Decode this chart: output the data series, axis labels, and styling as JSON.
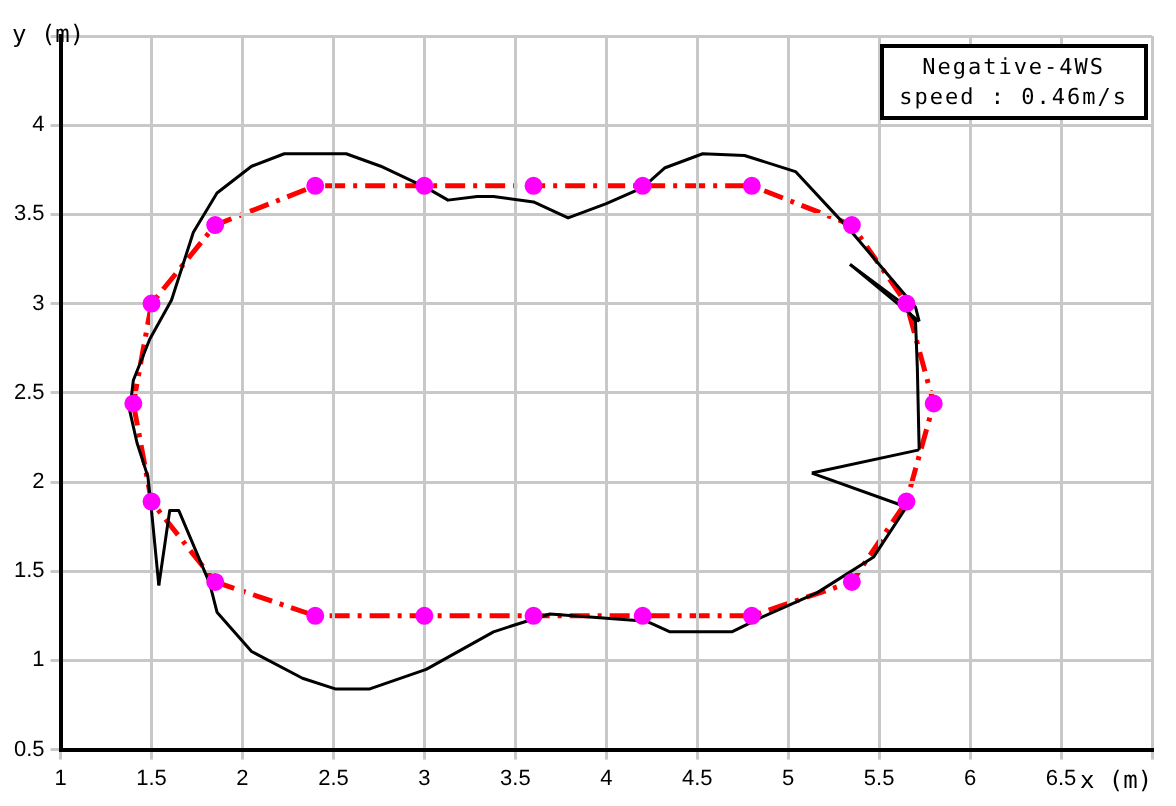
{
  "chart_data": {
    "type": "line",
    "xlabel": "x (m)",
    "ylabel": "y (m)",
    "annotations": [
      "Negative-4WS",
      "speed : 0.46m/s"
    ],
    "xlim": [
      1,
      7
    ],
    "xticks": [
      1,
      1.5,
      2,
      2.5,
      3,
      3.5,
      4,
      4.5,
      5,
      5.5,
      6,
      6.5,
      {
        "value": 7,
        "label": null
      }
    ],
    "ylim": [
      0.5,
      4.5
    ],
    "yticks": [
      0.5,
      1,
      1.5,
      2,
      2.5,
      3,
      3.5,
      4,
      {
        "value": 4.5,
        "label": null
      }
    ],
    "grid": true,
    "legend": false,
    "series": [
      {
        "type": "line",
        "color": "#000000",
        "line_style": "solid",
        "marker": "none",
        "x": [
          1.38,
          1.4,
          1.49,
          1.61,
          1.73,
          1.86,
          2.05,
          2.23,
          2.57,
          2.76,
          3.01,
          3.13,
          3.29,
          3.38,
          3.6,
          3.79,
          4.0,
          4.2,
          4.32,
          4.53,
          4.76,
          5.04,
          5.25,
          5.35,
          5.7,
          5.72
        ],
        "values": [
          2.4,
          2.57,
          2.8,
          3.02,
          3.4,
          3.62,
          3.77,
          3.84,
          3.84,
          3.77,
          3.65,
          3.58,
          3.6,
          3.6,
          3.57,
          3.48,
          3.56,
          3.65,
          3.76,
          3.84,
          3.83,
          3.74,
          3.51,
          3.4,
          2.98,
          2.9
        ]
      },
      {
        "type": "line",
        "color": "#000000",
        "line_style": "solid",
        "marker": "none",
        "x": [
          5.34,
          5.72
        ],
        "values": [
          3.22,
          2.9
        ]
      },
      {
        "type": "line",
        "color": "#000000",
        "line_style": "solid",
        "marker": "none",
        "x": [
          5.34,
          5.63,
          5.7,
          5.71,
          5.72
        ],
        "values": [
          3.22,
          3.0,
          2.9,
          2.64,
          2.18
        ]
      },
      {
        "type": "line",
        "color": "#000000",
        "line_style": "solid",
        "marker": "none",
        "x": [
          5.13,
          5.72
        ],
        "values": [
          2.05,
          2.18
        ]
      },
      {
        "type": "line",
        "color": "#000000",
        "line_style": "solid",
        "marker": "none",
        "x": [
          5.13,
          5.65
        ],
        "values": [
          2.05,
          1.86
        ]
      },
      {
        "type": "line",
        "color": "#000000",
        "line_style": "solid",
        "marker": "none",
        "x": [
          1.82,
          1.86,
          2.05,
          2.33,
          2.51,
          2.7,
          3.01,
          3.38,
          3.5,
          3.69,
          4.22,
          4.35,
          4.69,
          4.85,
          5.16,
          5.47,
          5.65
        ],
        "values": [
          1.43,
          1.27,
          1.05,
          0.9,
          0.84,
          0.84,
          0.95,
          1.16,
          1.2,
          1.26,
          1.22,
          1.16,
          1.16,
          1.24,
          1.38,
          1.58,
          1.86
        ]
      },
      {
        "type": "line",
        "color": "#000000",
        "line_style": "solid",
        "marker": "none",
        "x": [
          1.54,
          1.6,
          1.65,
          1.82
        ],
        "values": [
          1.42,
          1.84,
          1.84,
          1.43
        ]
      },
      {
        "type": "line",
        "color": "#000000",
        "line_style": "solid",
        "marker": "none",
        "x": [
          1.38,
          1.42,
          1.48,
          1.5,
          1.54
        ],
        "values": [
          2.4,
          2.22,
          2.03,
          1.84,
          1.42
        ]
      },
      {
        "type": "scatter",
        "color": "#ff00ff",
        "marker": "circle",
        "x": [
          1.4,
          1.5,
          1.85,
          2.4,
          3,
          3.6,
          4.2,
          4.8,
          5.35,
          5.65,
          5.8,
          5.65,
          5.35,
          4.8,
          4.2,
          3.6,
          3,
          2.4,
          1.85,
          1.5
        ],
        "values": [
          2.44,
          3,
          3.44,
          3.66,
          3.66,
          3.66,
          3.66,
          3.66,
          3.44,
          3,
          2.44,
          1.89,
          1.44,
          1.25,
          1.25,
          1.25,
          1.25,
          1.25,
          1.44,
          1.89
        ]
      }
    ]
  }
}
